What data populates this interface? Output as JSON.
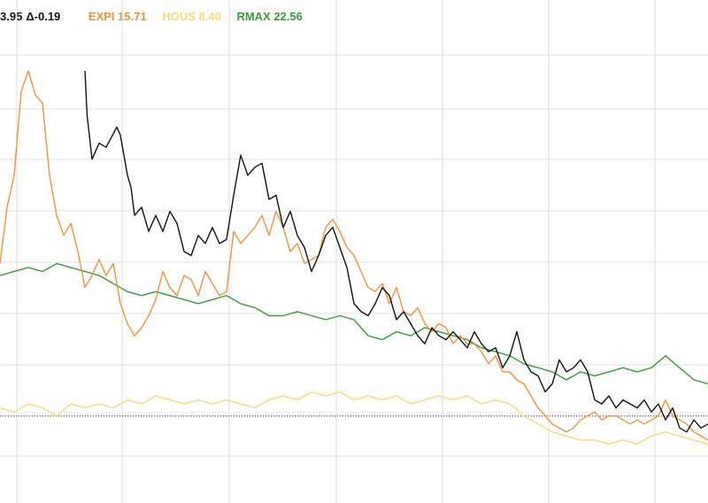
{
  "legend": {
    "primary": {
      "value": "3.95",
      "change": "Δ-0.19",
      "color": "#111111"
    },
    "entries": [
      {
        "label": "EXPI 15.71",
        "color": "#f0923c"
      },
      {
        "label": "HOUS 8.40",
        "color": "#f7d87a"
      },
      {
        "label": "RMAX 22.56",
        "color": "#3a9a3c"
      }
    ]
  },
  "chart_data": {
    "type": "line",
    "title": "",
    "xlabel": "",
    "ylabel": "",
    "x_range": [
      0,
      100
    ],
    "y_range": [
      0,
      100
    ],
    "grid": true,
    "reference_line": {
      "y": 10,
      "style": "dotted"
    },
    "series": [
      {
        "color": "#111111",
        "points": [
          [
            12,
            96
          ],
          [
            12.3,
            85
          ],
          [
            13,
            74
          ],
          [
            14,
            78
          ],
          [
            15,
            77
          ],
          [
            16.5,
            82
          ],
          [
            17,
            80
          ],
          [
            18,
            70
          ],
          [
            18.5,
            67
          ],
          [
            19,
            60
          ],
          [
            20,
            62
          ],
          [
            21,
            56
          ],
          [
            22,
            60
          ],
          [
            23,
            56
          ],
          [
            24,
            61
          ],
          [
            25,
            58
          ],
          [
            26,
            51
          ],
          [
            27,
            50
          ],
          [
            28,
            55
          ],
          [
            29,
            53
          ],
          [
            30,
            57
          ],
          [
            31,
            53
          ],
          [
            32,
            54
          ],
          [
            33,
            65
          ],
          [
            34,
            75
          ],
          [
            35,
            70
          ],
          [
            36,
            72
          ],
          [
            37,
            73
          ],
          [
            38,
            64
          ],
          [
            39,
            65
          ],
          [
            40,
            57
          ],
          [
            41,
            61
          ],
          [
            42,
            55
          ],
          [
            43,
            52
          ],
          [
            44,
            46
          ],
          [
            45,
            50
          ],
          [
            46,
            55
          ],
          [
            47,
            57
          ],
          [
            48,
            52
          ],
          [
            49,
            47
          ],
          [
            50,
            38
          ],
          [
            51,
            36
          ],
          [
            52,
            35
          ],
          [
            53,
            38
          ],
          [
            54,
            42
          ],
          [
            55,
            40
          ],
          [
            56,
            34
          ],
          [
            57,
            36
          ],
          [
            58,
            33
          ],
          [
            59,
            30
          ],
          [
            60,
            28
          ],
          [
            61,
            32
          ],
          [
            62,
            30
          ],
          [
            63,
            29
          ],
          [
            64,
            31
          ],
          [
            65,
            29
          ],
          [
            66,
            27
          ],
          [
            67,
            31
          ],
          [
            68,
            28
          ],
          [
            69,
            26
          ],
          [
            70,
            27
          ],
          [
            71,
            22
          ],
          [
            72,
            25
          ],
          [
            73,
            31
          ],
          [
            74,
            24
          ],
          [
            75,
            21
          ],
          [
            76,
            20
          ],
          [
            77,
            16
          ],
          [
            78,
            18
          ],
          [
            79,
            24
          ],
          [
            80,
            21
          ],
          [
            81,
            22
          ],
          [
            82,
            24
          ],
          [
            83,
            21
          ],
          [
            84,
            14
          ],
          [
            85,
            13
          ],
          [
            86,
            15
          ],
          [
            87,
            12
          ],
          [
            88,
            14
          ],
          [
            89,
            13
          ],
          [
            90,
            12
          ],
          [
            91,
            14
          ],
          [
            92,
            11
          ],
          [
            93,
            13
          ],
          [
            94,
            9
          ],
          [
            95,
            12
          ],
          [
            96,
            7
          ],
          [
            97,
            6
          ],
          [
            98,
            9
          ],
          [
            99,
            7
          ],
          [
            100,
            8
          ]
        ]
      },
      {
        "color": "#f0923c",
        "points": [
          [
            0,
            48
          ],
          [
            0.5,
            55
          ],
          [
            1,
            62
          ],
          [
            2,
            70
          ],
          [
            3,
            91
          ],
          [
            4,
            96
          ],
          [
            5,
            90
          ],
          [
            6,
            88
          ],
          [
            7,
            70
          ],
          [
            8,
            60
          ],
          [
            9,
            55
          ],
          [
            10,
            58
          ],
          [
            11,
            51
          ],
          [
            12,
            42
          ],
          [
            13,
            45
          ],
          [
            14,
            49
          ],
          [
            15,
            45
          ],
          [
            16,
            48
          ],
          [
            17,
            38
          ],
          [
            18,
            33
          ],
          [
            19,
            30
          ],
          [
            20,
            32
          ],
          [
            21,
            35
          ],
          [
            22,
            39
          ],
          [
            23,
            46
          ],
          [
            24,
            42
          ],
          [
            25,
            40
          ],
          [
            26,
            45
          ],
          [
            27,
            44
          ],
          [
            28,
            40
          ],
          [
            29,
            46
          ],
          [
            30,
            43
          ],
          [
            31,
            40
          ],
          [
            32,
            41
          ],
          [
            33,
            56
          ],
          [
            34,
            53
          ],
          [
            35,
            55
          ],
          [
            36,
            57
          ],
          [
            37,
            60
          ],
          [
            38,
            55
          ],
          [
            39,
            61
          ],
          [
            40,
            57
          ],
          [
            41,
            51
          ],
          [
            42,
            53
          ],
          [
            43,
            48
          ],
          [
            44,
            49
          ],
          [
            45,
            50
          ],
          [
            46,
            57
          ],
          [
            47,
            59
          ],
          [
            48,
            56
          ],
          [
            49,
            52
          ],
          [
            50,
            50
          ],
          [
            51,
            46
          ],
          [
            52,
            42
          ],
          [
            53,
            41
          ],
          [
            54,
            43
          ],
          [
            55,
            38
          ],
          [
            56,
            42
          ],
          [
            57,
            36
          ],
          [
            58,
            35
          ],
          [
            59,
            37
          ],
          [
            60,
            33
          ],
          [
            61,
            31
          ],
          [
            62,
            33
          ],
          [
            63,
            32
          ],
          [
            64,
            28
          ],
          [
            65,
            30
          ],
          [
            66,
            28
          ],
          [
            67,
            28
          ],
          [
            68,
            26
          ],
          [
            69,
            23
          ],
          [
            70,
            25
          ],
          [
            71,
            21
          ],
          [
            72,
            21
          ],
          [
            73,
            19
          ],
          [
            74,
            18
          ],
          [
            75,
            15
          ],
          [
            76,
            12
          ],
          [
            77,
            10
          ],
          [
            78,
            8
          ],
          [
            79,
            7
          ],
          [
            80,
            6
          ],
          [
            81,
            7
          ],
          [
            82,
            9
          ],
          [
            83,
            10
          ],
          [
            84,
            11
          ],
          [
            85,
            9
          ],
          [
            86,
            10
          ],
          [
            87,
            10
          ],
          [
            88,
            9
          ],
          [
            89,
            8
          ],
          [
            90,
            9
          ],
          [
            91,
            8
          ],
          [
            92,
            9
          ],
          [
            93,
            10
          ],
          [
            94,
            14
          ],
          [
            95,
            10
          ],
          [
            96,
            9
          ],
          [
            97,
            8
          ],
          [
            98,
            6
          ],
          [
            99,
            5
          ],
          [
            100,
            4
          ]
        ]
      },
      {
        "color": "#f7d87a",
        "points": [
          [
            0,
            12
          ],
          [
            2,
            11
          ],
          [
            4,
            13
          ],
          [
            6,
            12
          ],
          [
            8,
            10
          ],
          [
            10,
            13
          ],
          [
            12,
            12
          ],
          [
            14,
            13
          ],
          [
            16,
            12
          ],
          [
            18,
            14
          ],
          [
            20,
            13
          ],
          [
            22,
            15
          ],
          [
            24,
            14
          ],
          [
            26,
            13
          ],
          [
            28,
            14
          ],
          [
            30,
            13
          ],
          [
            32,
            14
          ],
          [
            34,
            13
          ],
          [
            36,
            12
          ],
          [
            38,
            14
          ],
          [
            40,
            15
          ],
          [
            42,
            14
          ],
          [
            44,
            16
          ],
          [
            46,
            15
          ],
          [
            48,
            16
          ],
          [
            50,
            14
          ],
          [
            52,
            15
          ],
          [
            54,
            14
          ],
          [
            56,
            15
          ],
          [
            58,
            13
          ],
          [
            60,
            14
          ],
          [
            62,
            15
          ],
          [
            64,
            14
          ],
          [
            66,
            15
          ],
          [
            68,
            13
          ],
          [
            70,
            14
          ],
          [
            72,
            13
          ],
          [
            74,
            10
          ],
          [
            76,
            8
          ],
          [
            78,
            6
          ],
          [
            80,
            5
          ],
          [
            82,
            4
          ],
          [
            84,
            4
          ],
          [
            86,
            3
          ],
          [
            88,
            4
          ],
          [
            90,
            3
          ],
          [
            92,
            5
          ],
          [
            94,
            6
          ],
          [
            96,
            5
          ],
          [
            98,
            4
          ],
          [
            100,
            3
          ]
        ]
      },
      {
        "color": "#3a9a3c",
        "points": [
          [
            0,
            45
          ],
          [
            2,
            46
          ],
          [
            4,
            47
          ],
          [
            6,
            46
          ],
          [
            8,
            48
          ],
          [
            10,
            47
          ],
          [
            12,
            46
          ],
          [
            14,
            45
          ],
          [
            16,
            43
          ],
          [
            18,
            41
          ],
          [
            20,
            40
          ],
          [
            22,
            41
          ],
          [
            24,
            40
          ],
          [
            26,
            39
          ],
          [
            28,
            38
          ],
          [
            30,
            39
          ],
          [
            32,
            40
          ],
          [
            34,
            38
          ],
          [
            36,
            37
          ],
          [
            38,
            35
          ],
          [
            40,
            35
          ],
          [
            42,
            36
          ],
          [
            44,
            35
          ],
          [
            46,
            34
          ],
          [
            48,
            35
          ],
          [
            50,
            34
          ],
          [
            52,
            30
          ],
          [
            54,
            29
          ],
          [
            56,
            31
          ],
          [
            58,
            30
          ],
          [
            60,
            32
          ],
          [
            62,
            31
          ],
          [
            64,
            30
          ],
          [
            66,
            29
          ],
          [
            68,
            27
          ],
          [
            70,
            26
          ],
          [
            72,
            25
          ],
          [
            74,
            23
          ],
          [
            76,
            22
          ],
          [
            78,
            21
          ],
          [
            80,
            19
          ],
          [
            82,
            21
          ],
          [
            84,
            20
          ],
          [
            86,
            21
          ],
          [
            88,
            22
          ],
          [
            90,
            21
          ],
          [
            92,
            22
          ],
          [
            94,
            25
          ],
          [
            96,
            22
          ],
          [
            98,
            19
          ],
          [
            100,
            18
          ]
        ]
      }
    ]
  }
}
